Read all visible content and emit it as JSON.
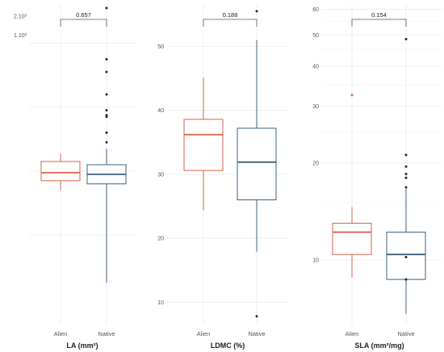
{
  "colors": {
    "alien": "#d9604c",
    "native": "#3f5f7f",
    "grid": "#ebebeb",
    "bracket": "#555555"
  },
  "chart_data": [
    {
      "type": "box",
      "xlabel": "LA (mm²)",
      "categories": [
        "Alien",
        "Native"
      ],
      "ytick_labels": [
        "1.10³",
        "2.10³"
      ],
      "y_scale": "linear (raw tick labels only)",
      "significance": {
        "label": "0.657",
        "between": [
          "Alien",
          "Native"
        ]
      },
      "boxes": [
        {
          "group": "Alien",
          "whisker_low": 0.42,
          "q1": 0.45,
          "median": 0.475,
          "q3": 0.51,
          "whisker_high": 0.535,
          "outliers": []
        },
        {
          "group": "Native",
          "whisker_low": 0.13,
          "q1": 0.44,
          "median": 0.47,
          "q3": 0.5,
          "whisker_high": 0.55,
          "outliers": [
            0.57,
            0.6,
            0.65,
            0.655,
            0.67,
            0.72,
            0.79,
            0.83,
            0.99
          ]
        }
      ],
      "grid": true
    },
    {
      "type": "box",
      "xlabel": "LDMC (%)",
      "categories": [
        "Alien",
        "Native"
      ],
      "yticks": [
        10,
        20,
        30,
        40,
        50
      ],
      "ylim": [
        6.5,
        56.5
      ],
      "significance": {
        "label": "0.188",
        "between": [
          "Alien",
          "Native"
        ]
      },
      "boxes": [
        {
          "group": "Alien",
          "whisker_low": 24.4,
          "q1": 30.6,
          "median": 36.2,
          "q3": 38.6,
          "whisker_high": 45.1,
          "outliers": []
        },
        {
          "group": "Native",
          "whisker_low": 17.9,
          "q1": 26.0,
          "median": 31.9,
          "q3": 37.2,
          "whisker_high": 51.0,
          "outliers": [
            7.8,
            55.5
          ]
        }
      ],
      "grid": true
    },
    {
      "type": "box",
      "xlabel": "SLA (mm²/mg)",
      "categories": [
        "Alien",
        "Native"
      ],
      "yticks": [
        10,
        20,
        30,
        40,
        50,
        60
      ],
      "y_scale": "log",
      "ylim": [
        6.3,
        62
      ],
      "significance": {
        "label": "0.154",
        "between": [
          "Alien",
          "Native"
        ]
      },
      "boxes": [
        {
          "group": "Alien",
          "whisker_low": 8.8,
          "q1": 10.4,
          "median": 12.2,
          "q3": 13.0,
          "whisker_high": 14.6,
          "outliers": [
            32.5
          ]
        },
        {
          "group": "Native",
          "whisker_low": 6.8,
          "q1": 8.7,
          "median": 10.4,
          "q3": 12.2,
          "whisker_high": 16.6,
          "outliers": [
            8.7,
            10.2,
            16.8,
            18.0,
            18.5,
            19.5,
            21.2,
            48.5
          ]
        }
      ],
      "grid": true
    }
  ]
}
